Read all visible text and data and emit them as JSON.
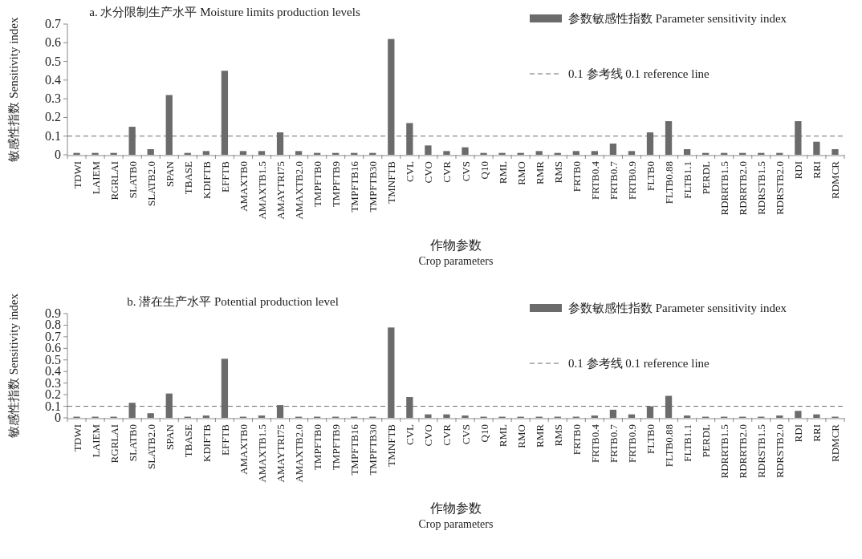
{
  "chart_data": [
    {
      "type": "bar",
      "title": "a. 水分限制生产水平 Moisture limits production levels",
      "xlabel": "作物参数\nCrop parameters",
      "ylabel": "敏感性指数 Sensitivity index",
      "legend": "top right",
      "grid": false,
      "categories": [
        "TDWI",
        "LAIEM",
        "RGRLAI",
        "SLATB0",
        "SLATB2.0",
        "SPAN",
        "TBASE",
        "KDIFTB",
        "EFFTB",
        "AMAXTB0",
        "AMAXTB1.5",
        "AMAYTRI75",
        "AMAXTB2.0",
        "TMPFTB0",
        "TMPFTB9",
        "TMPFTB16",
        "TMPFTB30",
        "TMNFTB",
        "CVL",
        "CVO",
        "CVR",
        "CVS",
        "Q10",
        "RML",
        "RMO",
        "RMR",
        "RMS",
        "FRTB0",
        "FRTB0.4",
        "FRTB0.7",
        "FRTB0.9",
        "FLTB0",
        "FLTB0.88",
        "FLTB1.1",
        "PERDL",
        "RDRRTB1.5",
        "RDRRTB2.0",
        "RDRSTB1.5",
        "RDRSTB2.0",
        "RDI",
        "RRI",
        "RDMCR"
      ],
      "series": [
        {
          "name": "参数敏感性指数 Parameter sensitivity index",
          "color": "#6b6b6b",
          "values": [
            0.01,
            0.01,
            0.01,
            0.15,
            0.03,
            0.32,
            0.01,
            0.02,
            0.45,
            0.02,
            0.02,
            0.12,
            0.02,
            0.01,
            0.01,
            0.01,
            0.01,
            0.62,
            0.17,
            0.05,
            0.02,
            0.04,
            0.01,
            0.01,
            0.01,
            0.02,
            0.01,
            0.02,
            0.02,
            0.06,
            0.02,
            0.12,
            0.18,
            0.03,
            0.01,
            0.01,
            0.01,
            0.01,
            0.01,
            0.18,
            0.07,
            0.03
          ]
        }
      ],
      "ylim": [
        0,
        0.7
      ],
      "yticks": [
        0,
        0.1,
        0.2,
        0.3,
        0.4,
        0.5,
        0.6,
        0.7
      ],
      "ref_lines": [
        {
          "axis": "y",
          "value": 0.1,
          "label": "0.1 参考线 0.1 reference line",
          "color": "#6b6b6b",
          "line_style": "dashed"
        }
      ]
    },
    {
      "type": "bar",
      "title": "b. 潜在生产水平 Potential production level",
      "xlabel": "作物参数\nCrop parameters",
      "ylabel": "敏感性指数 Sensitivity index",
      "legend": "top right",
      "grid": false,
      "categories": [
        "TDWI",
        "LAIEM",
        "RGRLAI",
        "SLATB0",
        "SLATB2.0",
        "SPAN",
        "TBASE",
        "KDIFTB",
        "EFFTB",
        "AMAXTB0",
        "AMAXTB1.5",
        "AMAYTRI75",
        "AMAXTB2.0",
        "TMPFTB0",
        "TMPFTB9",
        "TMPFTB16",
        "TMPFTB30",
        "TMNFTB",
        "CVL",
        "CVO",
        "CVR",
        "CVS",
        "Q10",
        "RML",
        "RMO",
        "RMR",
        "RMS",
        "FRTB0",
        "FRTB0.4",
        "FRTB0.7",
        "FRTB0.9",
        "FLTB0",
        "FLTB0.88",
        "FLTB1.1",
        "PERDL",
        "RDRRTB1.5",
        "RDRRTB2.0",
        "RDRSTB1.5",
        "RDRSTB2.0",
        "RDI",
        "RRI",
        "RDMCR"
      ],
      "series": [
        {
          "name": "参数敏感性指数 Parameter sensitivity index",
          "color": "#6b6b6b",
          "values": [
            0.01,
            0.01,
            0.01,
            0.13,
            0.04,
            0.21,
            0.01,
            0.02,
            0.51,
            0.01,
            0.02,
            0.11,
            0.01,
            0.01,
            0.01,
            0.01,
            0.01,
            0.78,
            0.18,
            0.03,
            0.03,
            0.02,
            0.01,
            0.01,
            0.01,
            0.01,
            0.01,
            0.01,
            0.02,
            0.07,
            0.03,
            0.1,
            0.19,
            0.02,
            0.01,
            0.01,
            0.01,
            0.01,
            0.02,
            0.06,
            0.03,
            0.01
          ]
        }
      ],
      "ylim": [
        0,
        0.9
      ],
      "yticks": [
        0,
        0.1,
        0.2,
        0.3,
        0.4,
        0.5,
        0.6,
        0.7,
        0.8,
        0.9
      ],
      "ref_lines": [
        {
          "axis": "y",
          "value": 0.1,
          "label": "0.1 参考线 0.1 reference line",
          "color": "#6b6b6b",
          "line_style": "dashed"
        }
      ]
    }
  ]
}
